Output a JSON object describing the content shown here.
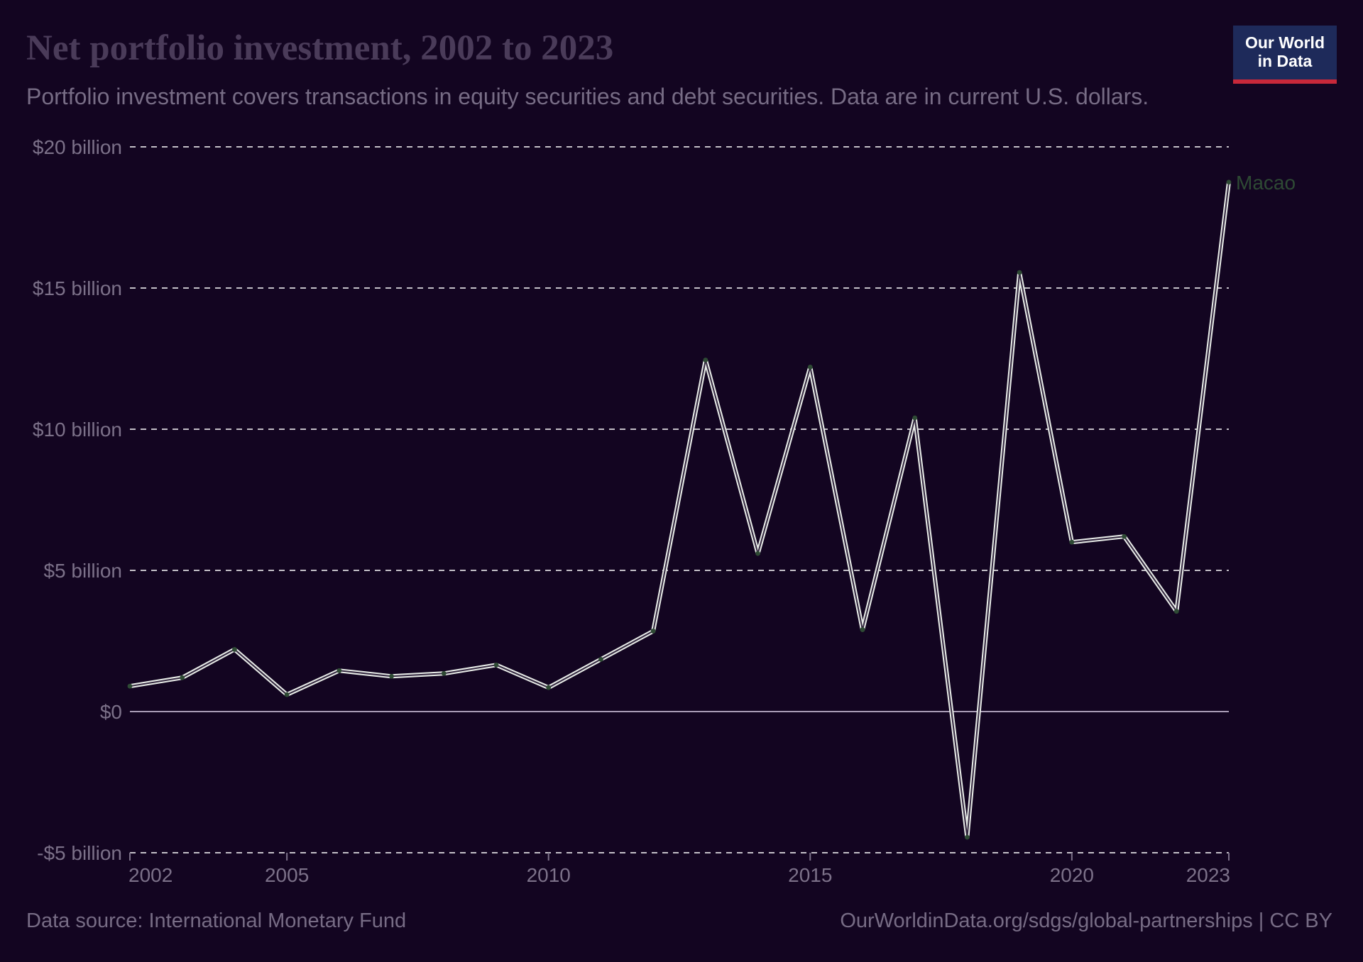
{
  "header": {
    "title": "Net portfolio investment, 2002 to 2023",
    "subtitle": "Portfolio investment covers transactions in equity securities and debt securities. Data are in current U.S. dollars."
  },
  "logo": {
    "line1": "Our World",
    "line2": "in Data"
  },
  "footer": {
    "source": "Data source: International Monetary Fund",
    "url": "OurWorldinData.org/sdgs/global-partnerships | CC BY"
  },
  "colors": {
    "background": "#130521",
    "series": "#e8ece8",
    "series_label": "#2e4a34",
    "gridline": "#ffffff",
    "zero_line": "#a89bb5",
    "axis_text": "#7c7189"
  },
  "chart_data": {
    "type": "line",
    "title": "Net portfolio investment, 2002 to 2023",
    "ylim": [
      -5,
      20
    ],
    "xlim": [
      2002,
      2023
    ],
    "y_ticks": [
      {
        "value": 20,
        "label": "$20 billion"
      },
      {
        "value": 15,
        "label": "$15 billion"
      },
      {
        "value": 10,
        "label": "$10 billion"
      },
      {
        "value": 5,
        "label": "$5 billion"
      },
      {
        "value": 0,
        "label": "$0"
      },
      {
        "value": -5,
        "label": "-$5 billion"
      }
    ],
    "x_ticks": [
      {
        "value": 2002,
        "label": "2002"
      },
      {
        "value": 2005,
        "label": "2005"
      },
      {
        "value": 2010,
        "label": "2010"
      },
      {
        "value": 2015,
        "label": "2015"
      },
      {
        "value": 2020,
        "label": "2020"
      },
      {
        "value": 2023,
        "label": "2023"
      }
    ],
    "grid": "horizontal dashed",
    "series": [
      {
        "name": "Macao",
        "x": [
          2002,
          2003,
          2004,
          2005,
          2006,
          2007,
          2008,
          2009,
          2010,
          2011,
          2012,
          2013,
          2014,
          2015,
          2016,
          2017,
          2018,
          2019,
          2020,
          2021,
          2022,
          2023
        ],
        "values": [
          0.9,
          1.2,
          2.2,
          0.6,
          1.45,
          1.25,
          1.35,
          1.65,
          0.85,
          1.85,
          2.85,
          12.45,
          5.6,
          12.2,
          2.9,
          10.4,
          -4.45,
          15.55,
          6.0,
          6.2,
          3.55,
          18.75
        ]
      }
    ]
  }
}
